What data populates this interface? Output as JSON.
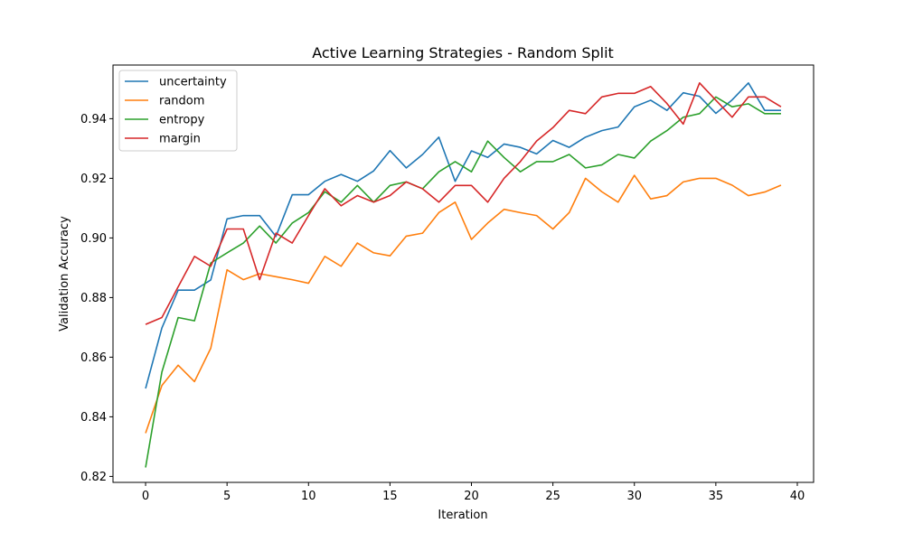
{
  "chart_data": {
    "type": "line",
    "title": "Active Learning Strategies - Random Split",
    "xlabel": "Iteration",
    "ylabel": "Validation Accuracy",
    "xlim": [
      -2,
      41
    ],
    "ylim": [
      0.818,
      0.958
    ],
    "xticks": [
      0,
      5,
      10,
      15,
      20,
      25,
      30,
      35,
      40
    ],
    "yticks": [
      0.82,
      0.84,
      0.86,
      0.88,
      0.9,
      0.92,
      0.94
    ],
    "ytick_labels": [
      "0.82",
      "0.84",
      "0.86",
      "0.88",
      "0.90",
      "0.92",
      "0.94"
    ],
    "grid": false,
    "legend_position": "upper-left",
    "x": [
      0,
      1,
      2,
      3,
      4,
      5,
      6,
      7,
      8,
      9,
      10,
      11,
      12,
      13,
      14,
      15,
      16,
      17,
      18,
      19,
      20,
      21,
      22,
      23,
      24,
      25,
      26,
      27,
      28,
      29,
      30,
      31,
      32,
      33,
      34,
      35,
      36,
      37,
      38,
      39
    ],
    "series": [
      {
        "name": "uncertainty",
        "color": "#1f77b4",
        "values": [
          0.8495,
          0.8698,
          0.8825,
          0.8825,
          0.8859,
          0.9064,
          0.9075,
          0.9075,
          0.9005,
          0.9145,
          0.9145,
          0.919,
          0.9213,
          0.919,
          0.9225,
          0.9293,
          0.9235,
          0.928,
          0.9338,
          0.919,
          0.9292,
          0.927,
          0.9315,
          0.9304,
          0.9282,
          0.9327,
          0.9304,
          0.9338,
          0.936,
          0.9372,
          0.944,
          0.9462,
          0.9428,
          0.9487,
          0.9475,
          0.9418,
          0.9463,
          0.952,
          0.9428,
          0.9428
        ]
      },
      {
        "name": "random",
        "color": "#ff7f0e",
        "values": [
          0.8345,
          0.8505,
          0.8573,
          0.8518,
          0.863,
          0.8893,
          0.886,
          0.888,
          0.887,
          0.886,
          0.8848,
          0.8938,
          0.8905,
          0.8983,
          0.895,
          0.894,
          0.9006,
          0.9016,
          0.9085,
          0.912,
          0.8995,
          0.905,
          0.9096,
          0.9085,
          0.9075,
          0.903,
          0.9085,
          0.92,
          0.9155,
          0.912,
          0.921,
          0.9131,
          0.9142,
          0.9188,
          0.92,
          0.92,
          0.9177,
          0.9142,
          0.9154,
          0.9177
        ]
      },
      {
        "name": "entropy",
        "color": "#2ca02c",
        "values": [
          0.823,
          0.855,
          0.8733,
          0.8722,
          0.8916,
          0.895,
          0.8983,
          0.904,
          0.8983,
          0.905,
          0.9085,
          0.9155,
          0.912,
          0.9176,
          0.912,
          0.9176,
          0.9188,
          0.9165,
          0.9222,
          0.9256,
          0.9222,
          0.9325,
          0.927,
          0.9222,
          0.9256,
          0.9256,
          0.928,
          0.9235,
          0.9245,
          0.928,
          0.9268,
          0.9325,
          0.936,
          0.9405,
          0.9417,
          0.9473,
          0.944,
          0.945,
          0.9417,
          0.9417
        ]
      },
      {
        "name": "margin",
        "color": "#d62728",
        "values": [
          0.871,
          0.8733,
          0.8836,
          0.8938,
          0.8905,
          0.903,
          0.903,
          0.886,
          0.9016,
          0.8983,
          0.9075,
          0.9165,
          0.9108,
          0.9142,
          0.912,
          0.9142,
          0.9188,
          0.9165,
          0.912,
          0.9176,
          0.9176,
          0.912,
          0.92,
          0.9256,
          0.9325,
          0.937,
          0.9428,
          0.9417,
          0.9473,
          0.9485,
          0.9485,
          0.9508,
          0.9451,
          0.9382,
          0.952,
          0.9462,
          0.9405,
          0.9473,
          0.9473,
          0.944
        ]
      }
    ]
  }
}
